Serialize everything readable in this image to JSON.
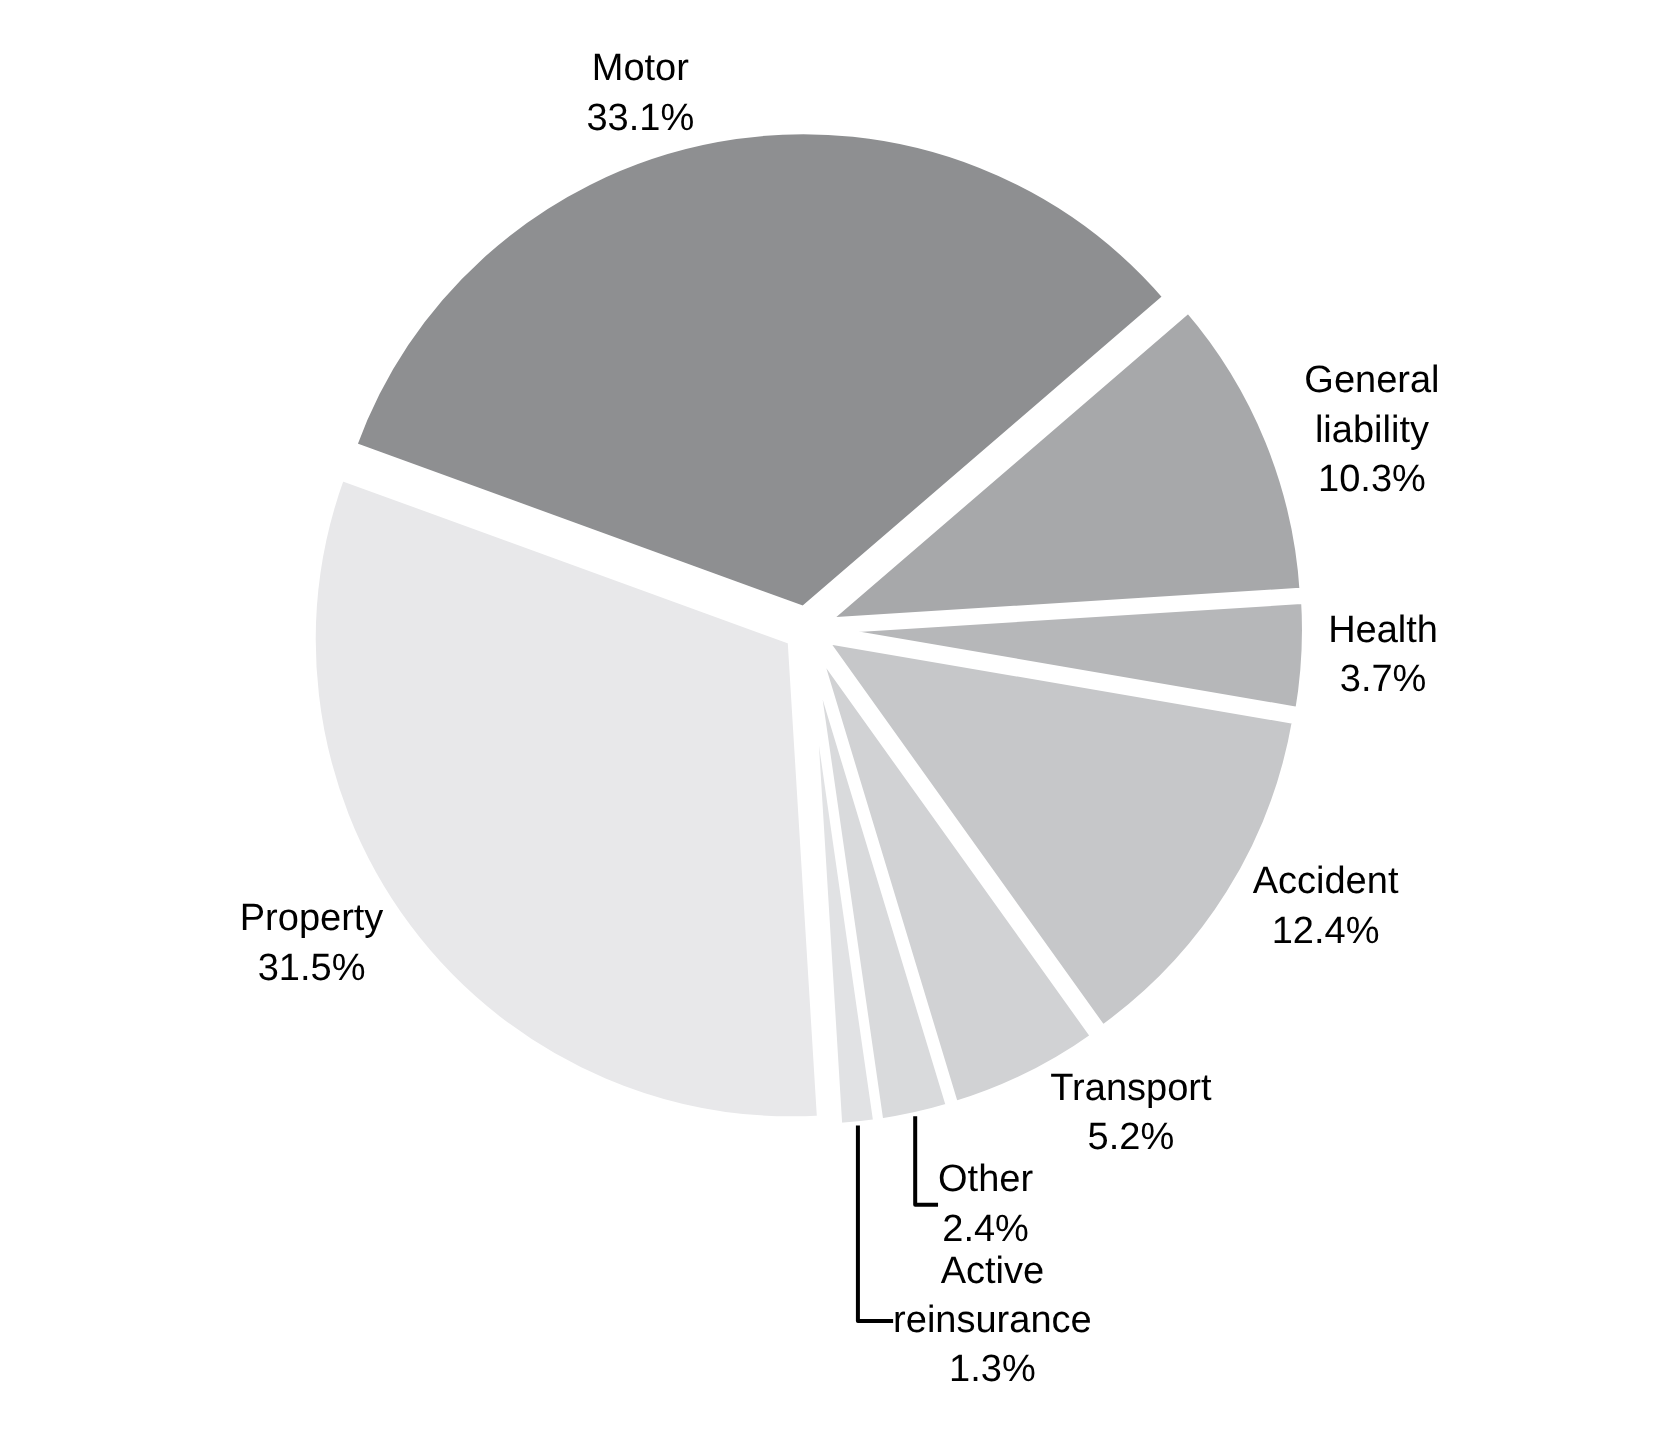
{
  "chart_data": {
    "type": "pie",
    "categories": [
      "Motor",
      "General liability",
      "Health",
      "Accident",
      "Transport",
      "Other",
      "Active reinsurance",
      "Property"
    ],
    "values": [
      33.1,
      10.3,
      3.7,
      12.4,
      5.2,
      2.4,
      1.3,
      31.5
    ],
    "value_labels": [
      "33.1%",
      "10.3%",
      "3.7%",
      "12.4%",
      "5.2%",
      "2.4%",
      "1.3%",
      "31.5%"
    ],
    "colors": [
      "#8e8f91",
      "#a7a8aa",
      "#b6b7b9",
      "#c6c7c9",
      "#d1d2d4",
      "#d9dadc",
      "#e1e2e4",
      "#e8e8ea"
    ],
    "legend": false
  }
}
